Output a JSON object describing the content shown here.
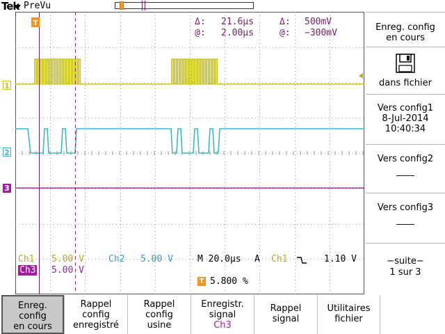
{
  "header": {
    "brand": "Tek",
    "mode": "PreVu"
  },
  "measurements": {
    "delta_time_label": "Δ:",
    "delta_time_value": "21.6µs",
    "delta_volt_label": "Δ:",
    "delta_volt_value": "500mV",
    "at_time_label": "@:",
    "at_time_value": "2.00µs",
    "at_volt_label": "@:",
    "at_volt_value": "−300mV"
  },
  "channels": [
    {
      "marker": "1",
      "color": "#c8c51a"
    },
    {
      "marker": "2",
      "color": "#38b8c8"
    },
    {
      "marker": "3",
      "color": "#9c1f9c"
    }
  ],
  "status": {
    "ch1_label": "Ch1",
    "ch1_scale": "5.00 V",
    "ch2_label": "Ch2",
    "ch2_scale": "5.00 V",
    "ch3_label": "Ch3",
    "ch3_scale": "5.00 V",
    "timebase": "M 20.0µs",
    "acq_mode": "A",
    "trig_source": "Ch1",
    "trig_slope": "falling-edge-icon",
    "trig_level": "1.10 V",
    "trig_position": "5.800 %",
    "trig_marker": "T"
  },
  "side_menu": [
    {
      "lines": [
        "Enreg. config",
        "en cours"
      ]
    },
    {
      "icon": "floppy-disk-icon",
      "lines": [
        "dans fichier"
      ]
    },
    {
      "lines": [
        "Vers config1",
        "8-Jul-2014",
        "10:40:34"
      ]
    },
    {
      "lines": [
        "Vers config2",
        "____"
      ]
    },
    {
      "lines": [
        "Vers config3",
        "____"
      ]
    },
    {
      "lines": [
        "−suite−",
        "1 sur 3"
      ]
    }
  ],
  "bottom_menu": [
    {
      "lines": [
        "Enreg.",
        "config",
        "en cours"
      ],
      "active": true
    },
    {
      "lines": [
        "Rappel",
        "config",
        "enregistré"
      ],
      "active": false
    },
    {
      "lines": [
        "Rappel",
        "config",
        "usine"
      ],
      "active": false
    },
    {
      "lines": [
        "Enregistr.",
        "signal",
        "Ch3"
      ],
      "active": false
    },
    {
      "lines": [
        "Rappel",
        "signal"
      ],
      "active": false
    },
    {
      "lines": [
        "Utilitaires",
        "fichier"
      ],
      "active": false
    }
  ]
}
